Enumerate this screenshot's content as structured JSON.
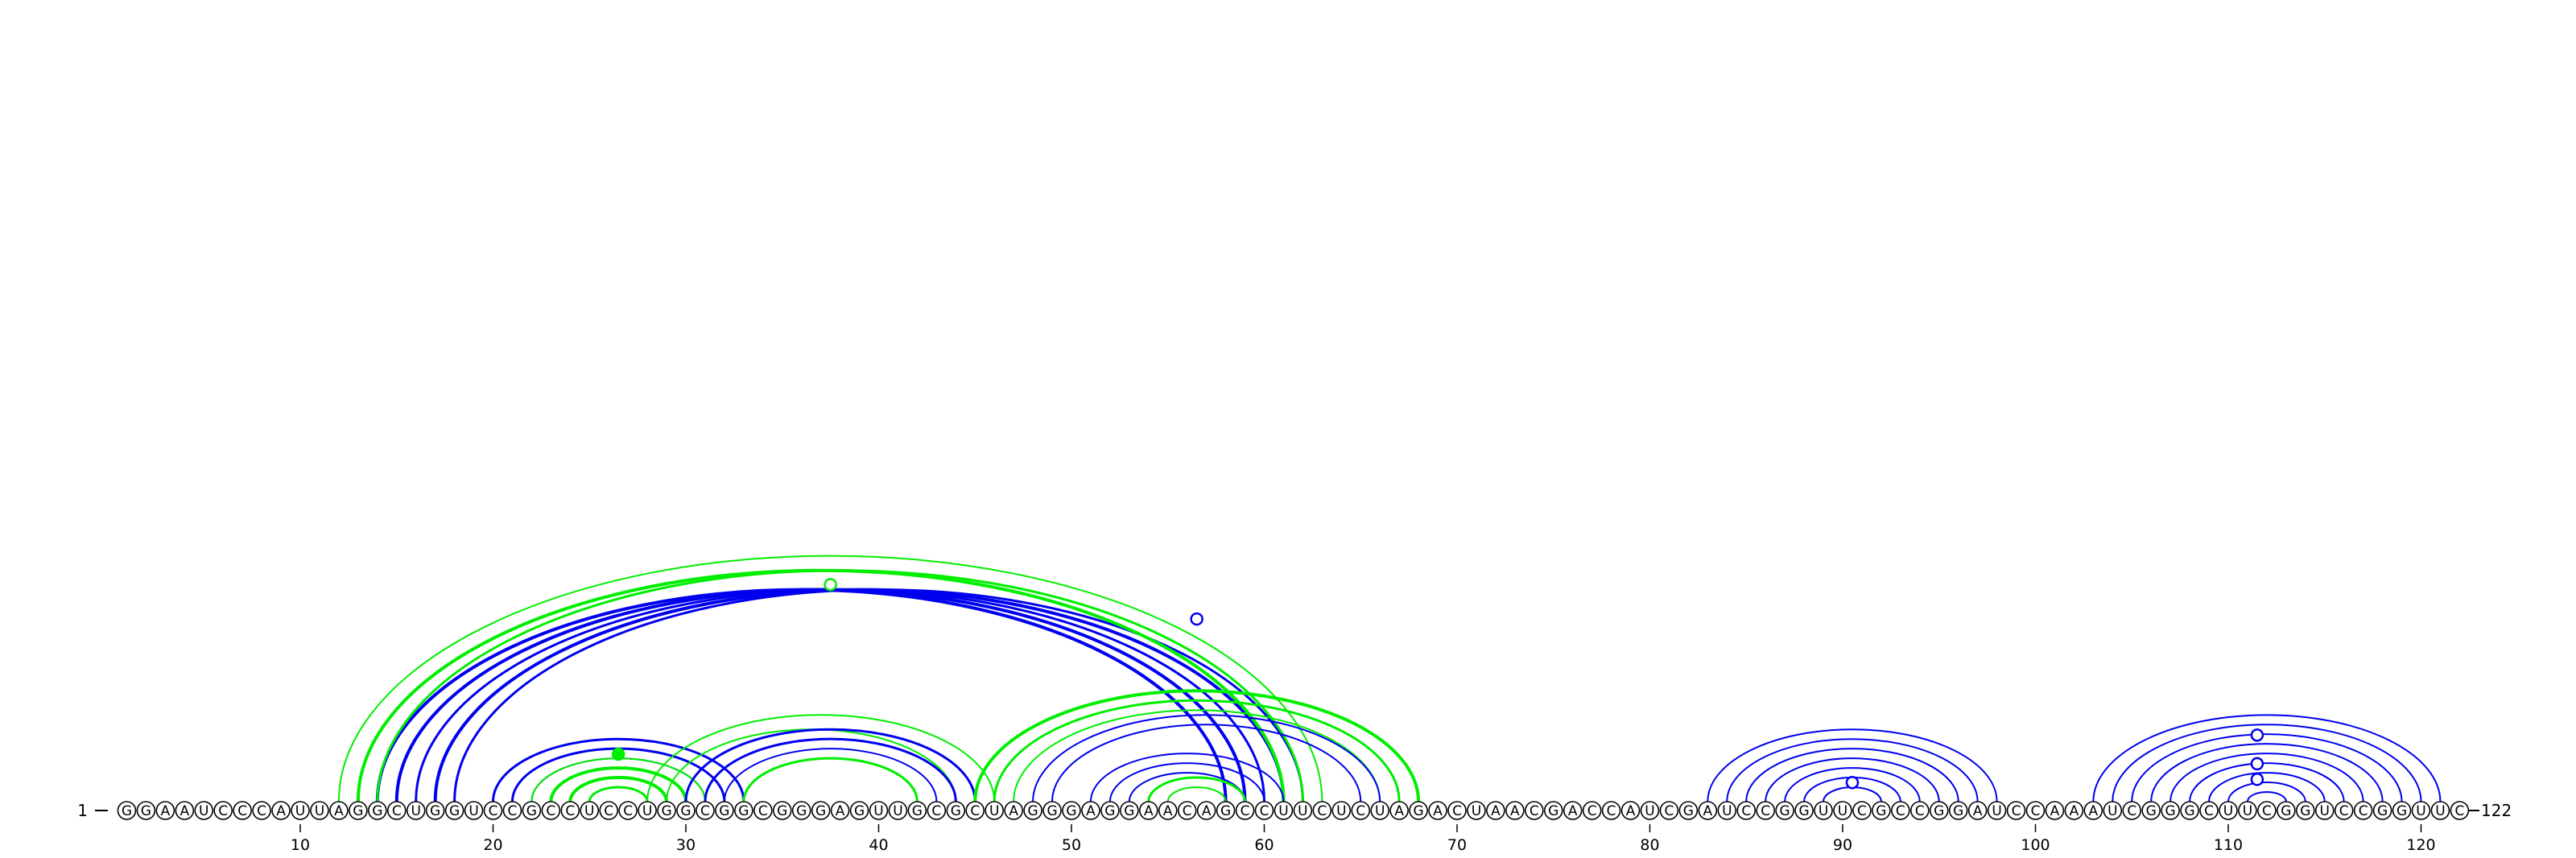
{
  "diagram": {
    "type": "arc-diagram",
    "sequence": "GGAAUCCCAUUAGGCUGGUCCGCCUCCUGGCGGCGGGAGUUGCGCUAGGGAGGAACAGCCUUCUCUAGACUAACGACCAUCGAUCCGGUUCGCCGGAUCCAAAUCGGGCUUCGGUCCGGUUC",
    "start_label": "1",
    "end_label": "122",
    "ticks": [
      10,
      20,
      30,
      40,
      50,
      60,
      70,
      80,
      90,
      100,
      110,
      120
    ],
    "colors": {
      "blue": "#0000ee",
      "green": "#00ee00"
    },
    "arcs": [
      {
        "i": 14,
        "j": 58,
        "color": "blue",
        "width": 4
      },
      {
        "i": 15,
        "j": 59,
        "color": "blue",
        "width": 4
      },
      {
        "i": 16,
        "j": 60,
        "color": "blue",
        "width": 3
      },
      {
        "i": 17,
        "j": 61,
        "color": "blue",
        "width": 4
      },
      {
        "i": 18,
        "j": 62,
        "color": "blue",
        "width": 3
      },
      {
        "i": 13,
        "j": 61,
        "color": "green",
        "width": 4
      },
      {
        "i": 14,
        "j": 62,
        "color": "green",
        "width": 3
      },
      {
        "i": 12,
        "j": 63,
        "color": "green",
        "width": 2
      },
      {
        "i": 20,
        "j": 33,
        "color": "blue",
        "width": 3
      },
      {
        "i": 21,
        "j": 32,
        "color": "blue",
        "width": 3
      },
      {
        "i": 22,
        "j": 31,
        "color": "blue",
        "width": 2
      },
      {
        "i": 22,
        "j": 31,
        "color": "green",
        "width": 2
      },
      {
        "i": 23,
        "j": 30,
        "color": "green",
        "width": 4
      },
      {
        "i": 24,
        "j": 29,
        "color": "green",
        "width": 4
      },
      {
        "i": 25,
        "j": 28,
        "color": "green",
        "width": 3
      },
      {
        "i": 29,
        "j": 44,
        "color": "green",
        "width": 2
      },
      {
        "i": 28,
        "j": 46,
        "color": "green",
        "width": 2
      },
      {
        "i": 30,
        "j": 45,
        "color": "blue",
        "width": 3
      },
      {
        "i": 31,
        "j": 44,
        "color": "blue",
        "width": 3
      },
      {
        "i": 32,
        "j": 43,
        "color": "blue",
        "width": 2
      },
      {
        "i": 33,
        "j": 42,
        "color": "green",
        "width": 3
      },
      {
        "i": 45,
        "j": 68,
        "color": "green",
        "width": 4
      },
      {
        "i": 46,
        "j": 67,
        "color": "green",
        "width": 3
      },
      {
        "i": 47,
        "j": 66,
        "color": "green",
        "width": 2
      },
      {
        "i": 48,
        "j": 66,
        "color": "blue",
        "width": 2
      },
      {
        "i": 49,
        "j": 65,
        "color": "blue",
        "width": 2
      },
      {
        "i": 51,
        "j": 61,
        "color": "blue",
        "width": 2
      },
      {
        "i": 52,
        "j": 60,
        "color": "blue",
        "width": 2
      },
      {
        "i": 53,
        "j": 59,
        "color": "blue",
        "width": 2
      },
      {
        "i": 54,
        "j": 59,
        "color": "green",
        "width": 3
      },
      {
        "i": 55,
        "j": 58,
        "color": "green",
        "width": 2
      },
      {
        "i": 83,
        "j": 98,
        "color": "blue",
        "width": 2
      },
      {
        "i": 84,
        "j": 97,
        "color": "blue",
        "width": 2
      },
      {
        "i": 85,
        "j": 96,
        "color": "blue",
        "width": 2
      },
      {
        "i": 86,
        "j": 95,
        "color": "blue",
        "width": 2
      },
      {
        "i": 87,
        "j": 94,
        "color": "blue",
        "width": 2
      },
      {
        "i": 88,
        "j": 93,
        "color": "blue",
        "width": 2
      },
      {
        "i": 89,
        "j": 92,
        "color": "blue",
        "width": 2
      },
      {
        "i": 103,
        "j": 121,
        "color": "blue",
        "width": 2
      },
      {
        "i": 104,
        "j": 120,
        "color": "blue",
        "width": 2
      },
      {
        "i": 105,
        "j": 119,
        "color": "blue",
        "width": 2
      },
      {
        "i": 106,
        "j": 118,
        "color": "blue",
        "width": 2
      },
      {
        "i": 107,
        "j": 117,
        "color": "blue",
        "width": 2
      },
      {
        "i": 108,
        "j": 116,
        "color": "blue",
        "width": 2
      },
      {
        "i": 109,
        "j": 115,
        "color": "blue",
        "width": 2
      },
      {
        "i": 110,
        "j": 114,
        "color": "blue",
        "width": 2
      },
      {
        "i": 111,
        "j": 113,
        "color": "blue",
        "width": 2
      }
    ],
    "markers": [
      {
        "pos": 26.5,
        "level": 0.18,
        "color": "green",
        "filled": true
      },
      {
        "pos": 37.5,
        "level": 0.87,
        "color": "green",
        "filled": false
      },
      {
        "pos": 56.5,
        "level": 0.73,
        "color": "blue",
        "filled": false
      },
      {
        "pos": 90.5,
        "level": 0.22,
        "color": "blue",
        "filled": false
      },
      {
        "pos": 111.5,
        "level": 0.73,
        "color": "blue",
        "filled": false
      },
      {
        "pos": 111.5,
        "level": 0.4,
        "color": "blue",
        "filled": false
      },
      {
        "pos": 111.5,
        "level": 0.22,
        "color": "blue",
        "filled": false
      }
    ]
  }
}
